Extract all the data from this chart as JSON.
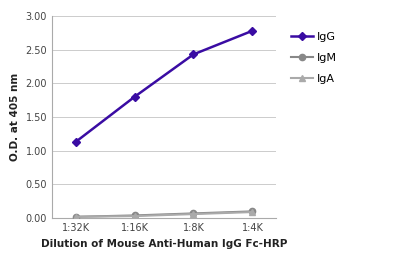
{
  "x_labels": [
    "1:32K",
    "1:16K",
    "1:8K",
    "1:4K"
  ],
  "x_values": [
    1,
    2,
    3,
    4
  ],
  "IgG_values": [
    1.13,
    1.8,
    2.43,
    2.78
  ],
  "IgM_values": [
    0.02,
    0.04,
    0.07,
    0.1
  ],
  "IgA_values": [
    0.02,
    0.03,
    0.06,
    0.09
  ],
  "IgG_color": "#3a0ca3",
  "IgM_color": "#888888",
  "IgA_color": "#aaaaaa",
  "xlabel": "Dilution of Mouse Anti-Human IgG Fc-HRP",
  "ylabel": "O.D. at 405 nm",
  "ylim": [
    0,
    3.0
  ],
  "yticks": [
    0.0,
    0.5,
    1.0,
    1.5,
    2.0,
    2.5,
    3.0
  ],
  "legend_labels": [
    "IgG",
    "IgM",
    "IgA"
  ],
  "background_color": "#ffffff",
  "plot_bg_color": "#f0f0f0"
}
